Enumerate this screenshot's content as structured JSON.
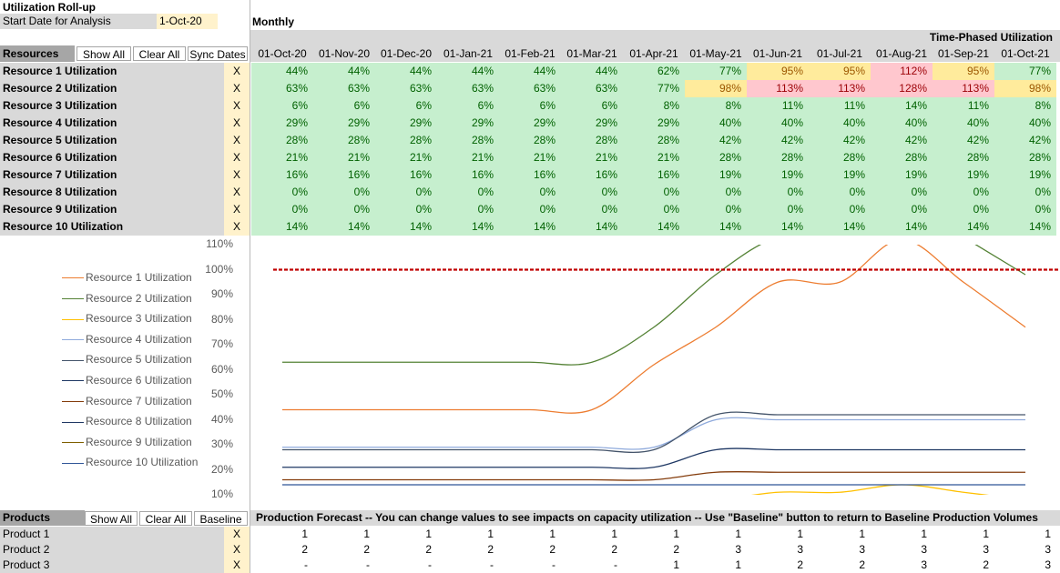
{
  "header": {
    "title": "Utilization Roll-up",
    "start_label": "Start Date for Analysis",
    "start_value": "1-Oct-20",
    "period": "Monthly",
    "section_title": "Time-Phased Utilization"
  },
  "resources_bar": {
    "label": "Resources",
    "show_all": "Show All",
    "clear_all": "Clear All",
    "sync_dates": "Sync Dates"
  },
  "dates": [
    "01-Oct-20",
    "01-Nov-20",
    "01-Dec-20",
    "01-Jan-21",
    "01-Feb-21",
    "01-Mar-21",
    "01-Apr-21",
    "01-May-21",
    "01-Jun-21",
    "01-Jul-21",
    "01-Aug-21",
    "01-Sep-21",
    "01-Oct-21"
  ],
  "resources": [
    {
      "name": "Resource 1 Utilization",
      "flag": "X",
      "values": [
        "44%",
        "44%",
        "44%",
        "44%",
        "44%",
        "44%",
        "62%",
        "77%",
        "95%",
        "95%",
        "112%",
        "95%",
        "77%"
      ]
    },
    {
      "name": "Resource 2 Utilization",
      "flag": "X",
      "values": [
        "63%",
        "63%",
        "63%",
        "63%",
        "63%",
        "63%",
        "77%",
        "98%",
        "113%",
        "113%",
        "128%",
        "113%",
        "98%"
      ]
    },
    {
      "name": "Resource 3 Utilization",
      "flag": "X",
      "values": [
        "6%",
        "6%",
        "6%",
        "6%",
        "6%",
        "6%",
        "8%",
        "8%",
        "11%",
        "11%",
        "14%",
        "11%",
        "8%"
      ]
    },
    {
      "name": "Resource 4 Utilization",
      "flag": "X",
      "values": [
        "29%",
        "29%",
        "29%",
        "29%",
        "29%",
        "29%",
        "29%",
        "40%",
        "40%",
        "40%",
        "40%",
        "40%",
        "40%"
      ]
    },
    {
      "name": "Resource 5 Utilization",
      "flag": "X",
      "values": [
        "28%",
        "28%",
        "28%",
        "28%",
        "28%",
        "28%",
        "28%",
        "42%",
        "42%",
        "42%",
        "42%",
        "42%",
        "42%"
      ]
    },
    {
      "name": "Resource 6 Utilization",
      "flag": "X",
      "values": [
        "21%",
        "21%",
        "21%",
        "21%",
        "21%",
        "21%",
        "21%",
        "28%",
        "28%",
        "28%",
        "28%",
        "28%",
        "28%"
      ]
    },
    {
      "name": "Resource 7 Utilization",
      "flag": "X",
      "values": [
        "16%",
        "16%",
        "16%",
        "16%",
        "16%",
        "16%",
        "16%",
        "19%",
        "19%",
        "19%",
        "19%",
        "19%",
        "19%"
      ]
    },
    {
      "name": "Resource 8 Utilization",
      "flag": "X",
      "values": [
        "0%",
        "0%",
        "0%",
        "0%",
        "0%",
        "0%",
        "0%",
        "0%",
        "0%",
        "0%",
        "0%",
        "0%",
        "0%"
      ]
    },
    {
      "name": "Resource 9 Utilization",
      "flag": "X",
      "values": [
        "0%",
        "0%",
        "0%",
        "0%",
        "0%",
        "0%",
        "0%",
        "0%",
        "0%",
        "0%",
        "0%",
        "0%",
        "0%"
      ]
    },
    {
      "name": "Resource 10 Utilization",
      "flag": "X",
      "values": [
        "14%",
        "14%",
        "14%",
        "14%",
        "14%",
        "14%",
        "14%",
        "14%",
        "14%",
        "14%",
        "14%",
        "14%",
        "14%"
      ]
    }
  ],
  "colors": {
    "green": "#c6efce",
    "yellow": "#ffeb9c",
    "red": "#ffc7ce",
    "green_text": "#006100",
    "yellow_text": "#9c5700",
    "red_text": "#9c0006"
  },
  "chart_data": {
    "type": "line",
    "x": [
      "01-Oct-20",
      "01-Nov-20",
      "01-Dec-20",
      "01-Jan-21",
      "01-Feb-21",
      "01-Mar-21",
      "01-Apr-21",
      "01-May-21",
      "01-Jun-21",
      "01-Jul-21",
      "01-Aug-21",
      "01-Sep-21",
      "01-Oct-21"
    ],
    "ylim": [
      10,
      110
    ],
    "yticks": [
      "110%",
      "100%",
      "90%",
      "80%",
      "70%",
      "60%",
      "50%",
      "40%",
      "30%",
      "20%",
      "10%"
    ],
    "threshold": 100,
    "series": [
      {
        "name": "Resource 1 Utilization",
        "color": "#ed7d31",
        "values": [
          44,
          44,
          44,
          44,
          44,
          44,
          62,
          77,
          95,
          95,
          112,
          95,
          77
        ]
      },
      {
        "name": "Resource 2 Utilization",
        "color": "#548235",
        "values": [
          63,
          63,
          63,
          63,
          63,
          63,
          77,
          98,
          113,
          113,
          128,
          113,
          98
        ]
      },
      {
        "name": "Resource 3 Utilization",
        "color": "#ffc000",
        "values": [
          6,
          6,
          6,
          6,
          6,
          6,
          8,
          8,
          11,
          11,
          14,
          11,
          8
        ]
      },
      {
        "name": "Resource 4 Utilization",
        "color": "#8faadc",
        "values": [
          29,
          29,
          29,
          29,
          29,
          29,
          29,
          40,
          40,
          40,
          40,
          40,
          40
        ]
      },
      {
        "name": "Resource 5 Utilization",
        "color": "#44546a",
        "values": [
          28,
          28,
          28,
          28,
          28,
          28,
          28,
          42,
          42,
          42,
          42,
          42,
          42
        ]
      },
      {
        "name": "Resource 6 Utilization",
        "color": "#1f3864",
        "values": [
          21,
          21,
          21,
          21,
          21,
          21,
          21,
          28,
          28,
          28,
          28,
          28,
          28
        ]
      },
      {
        "name": "Resource 7 Utilization",
        "color": "#843c0c",
        "values": [
          16,
          16,
          16,
          16,
          16,
          16,
          16,
          19,
          19,
          19,
          19,
          19,
          19
        ]
      },
      {
        "name": "Resource 8 Utilization",
        "color": "#203864",
        "values": [
          0,
          0,
          0,
          0,
          0,
          0,
          0,
          0,
          0,
          0,
          0,
          0,
          0
        ]
      },
      {
        "name": "Resource 9 Utilization",
        "color": "#7f6000",
        "values": [
          0,
          0,
          0,
          0,
          0,
          0,
          0,
          0,
          0,
          0,
          0,
          0,
          0
        ]
      },
      {
        "name": "Resource 10 Utilization",
        "color": "#2f5597",
        "values": [
          14,
          14,
          14,
          14,
          14,
          14,
          14,
          14,
          14,
          14,
          14,
          14,
          14
        ]
      }
    ]
  },
  "products_bar": {
    "label": "Products",
    "show_all": "Show All",
    "clear_all": "Clear All",
    "baseline": "Baseline",
    "forecast_text": "Production Forecast -- You can change values to see impacts on capacity utilization -- Use \"Baseline\" button to return to Baseline Production Volumes"
  },
  "products": [
    {
      "name": "Product 1",
      "flag": "X",
      "values": [
        "1",
        "1",
        "1",
        "1",
        "1",
        "1",
        "1",
        "1",
        "1",
        "1",
        "1",
        "1",
        "1"
      ]
    },
    {
      "name": "Product 2",
      "flag": "X",
      "values": [
        "2",
        "2",
        "2",
        "2",
        "2",
        "2",
        "2",
        "3",
        "3",
        "3",
        "3",
        "3",
        "3"
      ]
    },
    {
      "name": "Product 3",
      "flag": "X",
      "values": [
        "-",
        "-",
        "-",
        "-",
        "-",
        "-",
        "1",
        "1",
        "2",
        "2",
        "3",
        "2",
        "3"
      ]
    }
  ]
}
